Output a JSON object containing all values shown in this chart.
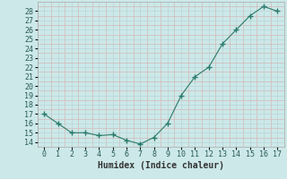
{
  "x": [
    0,
    1,
    2,
    3,
    4,
    5,
    6,
    7,
    8,
    9,
    10,
    11,
    12,
    13,
    14,
    15,
    16,
    17
  ],
  "y": [
    17.0,
    16.0,
    15.0,
    15.0,
    14.7,
    14.8,
    14.2,
    13.8,
    14.5,
    16.0,
    19.0,
    21.0,
    22.0,
    24.5,
    26.0,
    27.5,
    28.5,
    28.0
  ],
  "xlabel": "Humidex (Indice chaleur)",
  "ylim": [
    14,
    29
  ],
  "xlim": [
    -0.5,
    17.5
  ],
  "yticks": [
    14,
    15,
    16,
    17,
    18,
    19,
    20,
    21,
    22,
    23,
    24,
    25,
    26,
    27,
    28
  ],
  "xticks": [
    0,
    1,
    2,
    3,
    4,
    5,
    6,
    7,
    8,
    9,
    10,
    11,
    12,
    13,
    14,
    15,
    16,
    17
  ],
  "line_color": "#2a7a6a",
  "marker_color": "#2a7a6a",
  "bg_color": "#cce8e8",
  "grid_major_color": "#b8d4d4",
  "grid_minor_color": "#d4b8b8",
  "xlabel_fontsize": 7,
  "tick_fontsize": 6,
  "spine_color": "#aaaaaa"
}
